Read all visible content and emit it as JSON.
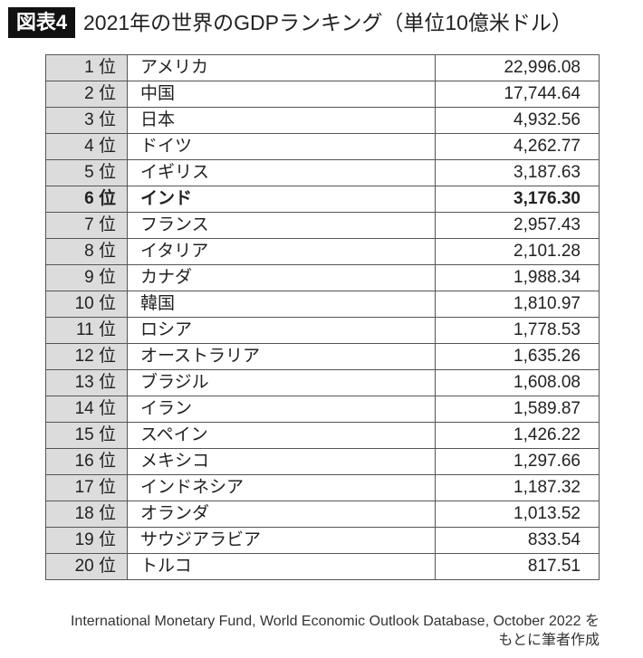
{
  "header": {
    "badge": "図表4",
    "title": "2021年の世界のGDPランキング（単位10億米ドル）"
  },
  "table": {
    "rows": [
      {
        "rank": "1 位",
        "country": "アメリカ",
        "value": "22,996.08"
      },
      {
        "rank": "2 位",
        "country": "中国",
        "value": "17,744.64"
      },
      {
        "rank": "3 位",
        "country": "日本",
        "value": "4,932.56"
      },
      {
        "rank": "4 位",
        "country": "ドイツ",
        "value": "4,262.77"
      },
      {
        "rank": "5 位",
        "country": "イギリス",
        "value": "3,187.63"
      },
      {
        "rank": "6 位",
        "country": "インド",
        "value": "3,176.30",
        "highlight": true
      },
      {
        "rank": "7 位",
        "country": "フランス",
        "value": "2,957.43"
      },
      {
        "rank": "8 位",
        "country": "イタリア",
        "value": "2,101.28"
      },
      {
        "rank": "9 位",
        "country": "カナダ",
        "value": "1,988.34"
      },
      {
        "rank": "10 位",
        "country": "韓国",
        "value": "1,810.97"
      },
      {
        "rank": "11 位",
        "country": "ロシア",
        "value": "1,778.53"
      },
      {
        "rank": "12 位",
        "country": "オーストラリア",
        "value": "1,635.26"
      },
      {
        "rank": "13 位",
        "country": "ブラジル",
        "value": "1,608.08"
      },
      {
        "rank": "14 位",
        "country": "イラン",
        "value": "1,589.87"
      },
      {
        "rank": "15 位",
        "country": "スペイン",
        "value": "1,426.22"
      },
      {
        "rank": "16 位",
        "country": "メキシコ",
        "value": "1,297.66"
      },
      {
        "rank": "17 位",
        "country": "インドネシア",
        "value": "1,187.32"
      },
      {
        "rank": "18 位",
        "country": "オランダ",
        "value": "1,013.52"
      },
      {
        "rank": "19 位",
        "country": "サウジアラビア",
        "value": "833.54"
      },
      {
        "rank": "20 位",
        "country": "トルコ",
        "value": "817.51"
      }
    ]
  },
  "footer": {
    "line1": "International Monetary Fund, World Economic Outlook Database, October 2022 を",
    "line2": "もとに筆者作成"
  },
  "colors": {
    "badge_bg": "#111111",
    "rank_bg": "#dcdcdc",
    "border": "#555555"
  }
}
